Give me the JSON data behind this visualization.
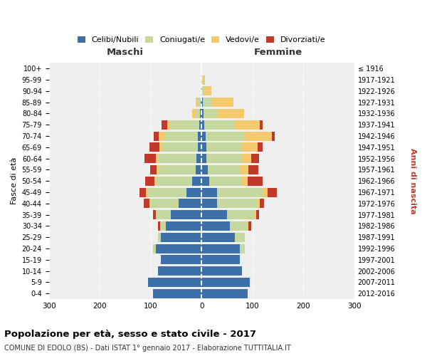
{
  "age_groups": [
    "0-4",
    "5-9",
    "10-14",
    "15-19",
    "20-24",
    "25-29",
    "30-34",
    "35-39",
    "40-44",
    "45-49",
    "50-54",
    "55-59",
    "60-64",
    "65-69",
    "70-74",
    "75-79",
    "80-84",
    "85-89",
    "90-94",
    "95-99",
    "100+"
  ],
  "birth_years": [
    "2012-2016",
    "2007-2011",
    "2002-2006",
    "1997-2001",
    "1992-1996",
    "1987-1991",
    "1982-1986",
    "1977-1981",
    "1972-1976",
    "1967-1971",
    "1962-1966",
    "1957-1961",
    "1952-1956",
    "1947-1951",
    "1942-1946",
    "1937-1941",
    "1932-1936",
    "1927-1931",
    "1922-1926",
    "1917-1921",
    "≤ 1916"
  ],
  "maschi_celibi": [
    95,
    105,
    85,
    80,
    90,
    80,
    70,
    60,
    45,
    30,
    18,
    12,
    10,
    8,
    7,
    5,
    3,
    2,
    0,
    0,
    0
  ],
  "maschi_coniugati": [
    0,
    0,
    0,
    0,
    5,
    5,
    12,
    30,
    55,
    75,
    70,
    72,
    75,
    70,
    65,
    55,
    8,
    5,
    2,
    0,
    0
  ],
  "maschi_vedovi": [
    0,
    0,
    0,
    0,
    0,
    0,
    0,
    0,
    3,
    5,
    5,
    5,
    5,
    5,
    12,
    8,
    8,
    5,
    0,
    0,
    0
  ],
  "maschi_divorziati": [
    0,
    0,
    0,
    0,
    0,
    0,
    3,
    5,
    10,
    12,
    18,
    12,
    22,
    20,
    10,
    10,
    0,
    0,
    0,
    0,
    0
  ],
  "femmine_celibi": [
    90,
    95,
    80,
    75,
    75,
    65,
    55,
    50,
    30,
    30,
    15,
    12,
    10,
    10,
    8,
    5,
    4,
    2,
    0,
    0,
    0
  ],
  "femmine_coniugati": [
    0,
    0,
    0,
    0,
    10,
    20,
    35,
    55,
    80,
    90,
    65,
    65,
    70,
    70,
    75,
    60,
    28,
    18,
    5,
    2,
    0
  ],
  "femmine_vedovi": [
    0,
    0,
    0,
    0,
    0,
    0,
    2,
    3,
    5,
    10,
    10,
    15,
    18,
    30,
    55,
    50,
    52,
    42,
    14,
    5,
    0
  ],
  "femmine_divorziati": [
    0,
    0,
    0,
    0,
    0,
    0,
    5,
    5,
    8,
    18,
    30,
    20,
    15,
    10,
    5,
    5,
    0,
    0,
    0,
    0,
    0
  ],
  "colors": {
    "celibi": "#3d6fa8",
    "coniugati": "#c5d89e",
    "vedovi": "#f5c96e",
    "divorziati": "#c0392b"
  },
  "title": "Popolazione per età, sesso e stato civile - 2017",
  "subtitle": "COMUNE DI EDOLO (BS) - Dati ISTAT 1° gennaio 2017 - Elaborazione TUTTITALIA.IT",
  "xlabel_maschi": "Maschi",
  "xlabel_femmine": "Femmine",
  "ylabel_left": "Fasce di età",
  "ylabel_right": "Anni di nascita",
  "xlim": 300,
  "bg_color": "#ffffff",
  "plot_bg_color": "#efefef",
  "grid_color": "#ffffff"
}
